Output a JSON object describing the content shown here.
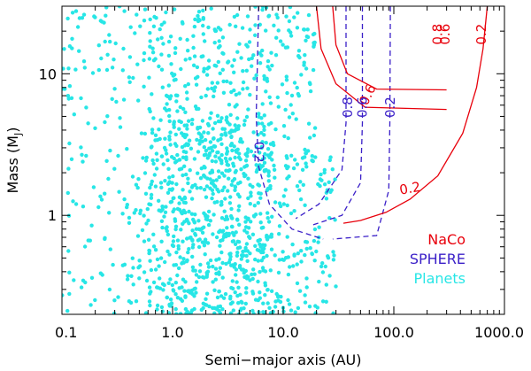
{
  "chart_data": {
    "type": "scatter",
    "xlabel": "Semi−major axis (AU)",
    "ylabel": "Mass (M",
    "ylabel_sub": "J",
    "ylabel_close": ")",
    "xscale": "log",
    "yscale": "log",
    "xlim": [
      0.1,
      1000
    ],
    "ylim": [
      0.2,
      30
    ],
    "x_ticks": [
      0.1,
      1,
      10,
      100,
      1000
    ],
    "x_tick_labels": [
      "0.1",
      "1.0",
      "10.0",
      "100.0",
      "1000.0"
    ],
    "y_ticks": [
      1,
      10
    ],
    "y_tick_labels": [
      "1",
      "10"
    ],
    "grid": false,
    "legend": {
      "placement": "bottom-right",
      "items": [
        {
          "label": "NaCo",
          "color": "#e8000b"
        },
        {
          "label": "SPHERE",
          "color": "#3a1fc8"
        },
        {
          "label": "Planets",
          "color": "#27e6e6"
        }
      ]
    },
    "series": [
      {
        "name": "Planets",
        "color": "#27e6e6",
        "style": "points",
        "clusters": [
          {
            "n": 520,
            "x_range": [
              0.6,
              8
            ],
            "y_range": [
              0.2,
              5
            ]
          },
          {
            "n": 320,
            "x_range": [
              0.8,
              30
            ],
            "y_range": [
              0.2,
              3
            ]
          },
          {
            "n": 230,
            "x_range": [
              2,
              20
            ],
            "y_range": [
              2,
              30
            ]
          },
          {
            "n": 170,
            "x_range": [
              0.1,
              0.6
            ],
            "y_range": [
              0.2,
              30
            ]
          },
          {
            "n": 120,
            "x_range": [
              0.6,
              2
            ],
            "y_range": [
              3,
              30
            ]
          }
        ]
      },
      {
        "name": "SPHERE",
        "color": "#3a1fc8",
        "style": "dashed",
        "contours": [
          {
            "label": "0.2",
            "points": [
              [
                93,
                30
              ],
              [
                92,
                4.5
              ],
              [
                90,
                1.5
              ],
              [
                70,
                0.72
              ],
              [
                28,
                0.68
              ]
            ]
          },
          {
            "label": "0.6",
            "points": [
              [
                52,
                30
              ],
              [
                52,
                4.5
              ],
              [
                50,
                1.7
              ],
              [
                34,
                1.0
              ],
              [
                18,
                0.85
              ]
            ]
          },
          {
            "label": "0.8",
            "points": [
              [
                37,
                30
              ],
              [
                37,
                4.5
              ],
              [
                34,
                2.1
              ],
              [
                21,
                1.2
              ],
              [
                13,
                0.95
              ]
            ]
          },
          {
            "label": "0.2",
            "points": [
              [
                6,
                30
              ],
              [
                5.7,
                5
              ],
              [
                6,
                2.2
              ],
              [
                7.5,
                1.2
              ],
              [
                12,
                0.8
              ],
              [
                23,
                0.68
              ]
            ]
          }
        ]
      },
      {
        "name": "NaCo",
        "color": "#e8000b",
        "style": "solid",
        "contours": [
          {
            "label": "0.8",
            "points": [
              [
                28,
                30
              ],
              [
                30,
                16
              ],
              [
                38,
                10
              ],
              [
                70,
                7.8
              ],
              [
                300,
                7.7
              ]
            ]
          },
          {
            "label": "0.6",
            "points": [
              [
                20,
                30
              ],
              [
                22,
                15
              ],
              [
                30,
                8.5
              ],
              [
                55,
                5.8
              ],
              [
                300,
                5.6
              ]
            ]
          },
          {
            "label": "0.2",
            "points": [
              [
                700,
                30
              ],
              [
                640,
                15
              ],
              [
                560,
                8
              ],
              [
                420,
                3.8
              ],
              [
                250,
                1.9
              ],
              [
                140,
                1.3
              ],
              [
                85,
                1.05
              ],
              [
                50,
                0.92
              ],
              [
                35,
                0.88
              ]
            ]
          }
        ]
      }
    ],
    "annotations": [
      {
        "text": "0.8",
        "series": "NaCo",
        "x": 250,
        "y": 19,
        "rotate": -90
      },
      {
        "text": "0.6",
        "series": "NaCo",
        "x": 290,
        "y": 19,
        "rotate": -90
      },
      {
        "text": "0.2",
        "series": "NaCo",
        "x": 620,
        "y": 19,
        "rotate": -90
      },
      {
        "text": "0.6",
        "series": "NaCo",
        "x": 58,
        "y": 7.1,
        "rotate": -65
      },
      {
        "text": "0.2",
        "series": "NaCo",
        "x": 140,
        "y": 1.55,
        "rotate": -10
      },
      {
        "text": "0.8",
        "series": "SPHERE",
        "x": 38.5,
        "y": 5.8,
        "rotate": -90
      },
      {
        "text": "0.6",
        "series": "SPHERE",
        "x": 52,
        "y": 5.8,
        "rotate": -90
      },
      {
        "text": "0.2",
        "series": "SPHERE",
        "x": 93,
        "y": 5.8,
        "rotate": -90
      },
      {
        "text": "0.2",
        "series": "SPHERE",
        "x": 6,
        "y": 2.8,
        "rotate": 90
      }
    ]
  }
}
